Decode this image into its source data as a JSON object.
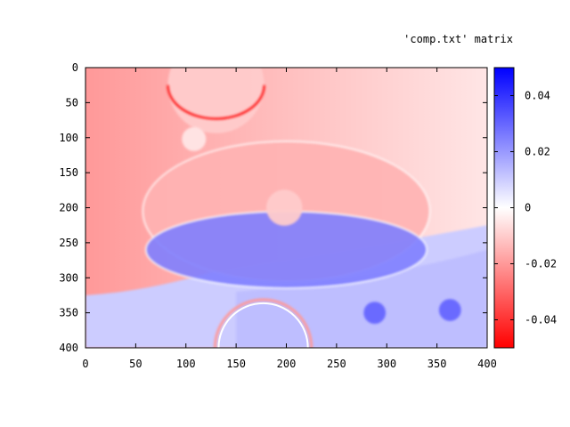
{
  "chart_data": {
    "type": "heatmap",
    "title": "'comp.txt' matrix",
    "xlabel": "",
    "ylabel": "",
    "x_range": [
      0,
      400
    ],
    "y_range": [
      0,
      400
    ],
    "y_axis_inverted": true,
    "x_ticks": [
      0,
      50,
      100,
      150,
      200,
      250,
      300,
      350,
      400
    ],
    "y_ticks": [
      0,
      50,
      100,
      150,
      200,
      250,
      300,
      350,
      400
    ],
    "x_tick_labels": [
      "0",
      "50",
      "100",
      "150",
      "200",
      "250",
      "300",
      "350",
      "400"
    ],
    "y_tick_labels": [
      "0",
      "50",
      "100",
      "150",
      "200",
      "250",
      "300",
      "350",
      "400"
    ],
    "colorbar": {
      "range": [
        -0.05,
        0.05
      ],
      "ticks": [
        0.04,
        0.02,
        0,
        -0.02,
        -0.04
      ],
      "tick_labels": [
        "0.04",
        "0.02",
        "0",
        "-0.02",
        "-0.04"
      ],
      "colors": {
        "low": "#ff0000",
        "mid": "#ffffff",
        "high": "#0000ff"
      }
    },
    "background_regions": {
      "upper": {
        "value": -0.02,
        "description_color": "#ff8f8f"
      },
      "lower": {
        "value": 0.01,
        "description_color": "#dde0ff"
      }
    },
    "features": [
      {
        "name": "top-disk",
        "cx": 130,
        "cy": 25,
        "r": 48,
        "value": -0.01
      },
      {
        "name": "small-disk",
        "cx": 108,
        "cy": 102,
        "r": 12,
        "value": -0.005
      },
      {
        "name": "large-ellipse-upper",
        "cx": 200,
        "cy": 205,
        "rx": 143,
        "ry": 100,
        "value": -0.015
      },
      {
        "name": "large-ellipse-lower",
        "cx": 200,
        "cy": 260,
        "rx": 140,
        "ry": 55,
        "value": 0.025
      },
      {
        "name": "center-disk",
        "cx": 198,
        "cy": 200,
        "r": 18,
        "value": -0.01
      },
      {
        "name": "blue-dot-1",
        "cx": 288,
        "cy": 350,
        "r": 11,
        "value": 0.03
      },
      {
        "name": "blue-dot-2",
        "cx": 363,
        "cy": 346,
        "r": 11,
        "value": 0.03
      },
      {
        "name": "bottom-ring",
        "cx": 177,
        "cy": 400,
        "r": 48,
        "value": -0.02
      }
    ]
  }
}
